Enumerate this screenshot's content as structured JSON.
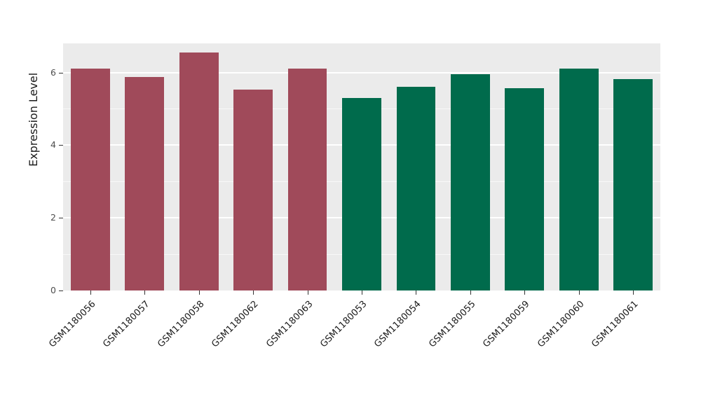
{
  "chart_data": {
    "type": "bar",
    "title": "",
    "xlabel": "",
    "ylabel": "Expression Level",
    "ylim": [
      0,
      6.8
    ],
    "yticks": [
      0,
      2,
      4,
      6
    ],
    "yticks_minor": [
      1,
      3,
      5
    ],
    "grid": "on",
    "legend": "none",
    "panel_background": "#EBEBEB",
    "categories": [
      "GSM1180056",
      "GSM1180057",
      "GSM1180058",
      "GSM1180062",
      "GSM1180063",
      "GSM1180053",
      "GSM1180054",
      "GSM1180055",
      "GSM1180059",
      "GSM1180060",
      "GSM1180061"
    ],
    "values": [
      6.1,
      5.88,
      6.55,
      5.52,
      6.1,
      5.3,
      5.6,
      5.95,
      5.57,
      6.1,
      5.82
    ],
    "groups": [
      "A",
      "A",
      "A",
      "A",
      "A",
      "B",
      "B",
      "B",
      "B",
      "B",
      "B"
    ],
    "group_colors": {
      "A": "#A04A5A",
      "B": "#006B4C"
    }
  }
}
